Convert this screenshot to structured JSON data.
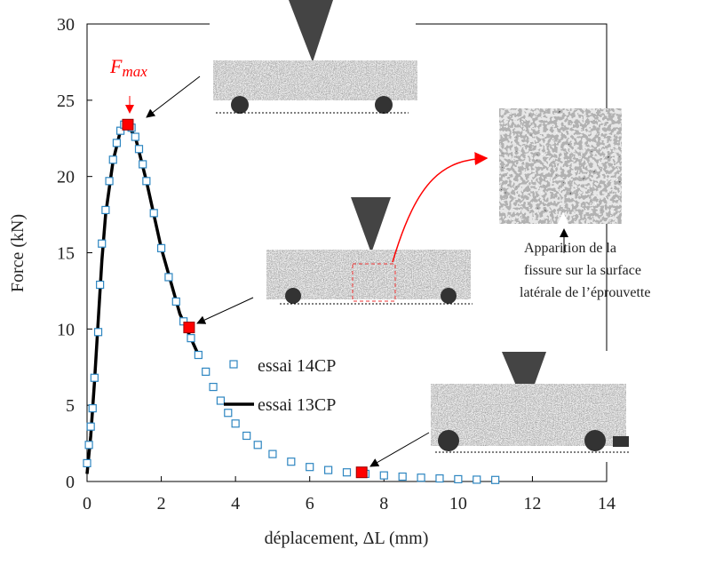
{
  "chart_data": {
    "type": "line",
    "x_label": "déplacement, ΔL (mm)",
    "y_label": "Force (kN)",
    "xlim": [
      0,
      14
    ],
    "xticks": [
      0,
      2,
      4,
      6,
      8,
      10,
      12,
      14
    ],
    "ylim": [
      0,
      30
    ],
    "yticks": [
      0,
      5,
      10,
      15,
      20,
      25,
      30
    ],
    "grid": false,
    "series": [
      {
        "name": "essai 14CP",
        "style": "markers",
        "color": "#2e86c1",
        "x": [
          0,
          0.05,
          0.1,
          0.15,
          0.2,
          0.3,
          0.35,
          0.4,
          0.5,
          0.6,
          0.7,
          0.8,
          0.9,
          1.0,
          1.1,
          1.2,
          1.3,
          1.4,
          1.5,
          1.6,
          1.8,
          2.0,
          2.2,
          2.4,
          2.6,
          2.8,
          3.0,
          3.2,
          3.4,
          3.6,
          3.8,
          4.0,
          4.3,
          4.6,
          5.0,
          5.5,
          6.0,
          6.5,
          7.0,
          7.5,
          8.0,
          8.5,
          9.0,
          9.5,
          10.0,
          10.5,
          11.0
        ],
        "values": [
          1.2,
          2.4,
          3.6,
          4.8,
          6.8,
          9.8,
          12.9,
          15.6,
          17.8,
          19.7,
          21.1,
          22.2,
          23.0,
          23.4,
          23.5,
          23.2,
          22.6,
          21.8,
          20.8,
          19.7,
          17.6,
          15.3,
          13.4,
          11.8,
          10.5,
          9.4,
          8.3,
          7.2,
          6.2,
          5.3,
          4.5,
          3.8,
          3.0,
          2.4,
          1.8,
          1.3,
          0.95,
          0.75,
          0.6,
          0.5,
          0.4,
          0.32,
          0.25,
          0.2,
          0.15,
          0.12,
          0.1
        ]
      },
      {
        "name": "essai 13CP",
        "style": "line",
        "color": "#000000",
        "x": [
          0,
          0.1,
          0.2,
          0.3,
          0.4,
          0.5,
          0.7,
          0.9,
          1.05,
          1.3,
          1.6,
          2.0,
          2.5,
          3.0
        ],
        "values": [
          0.5,
          3.0,
          6.5,
          10.5,
          14.5,
          17.5,
          21.0,
          23.0,
          23.5,
          22.6,
          19.7,
          15.3,
          11.0,
          8.3
        ]
      }
    ],
    "highlight_points": {
      "color": "#ff0000",
      "x": [
        1.1,
        2.75,
        7.4
      ],
      "values": [
        23.4,
        10.1,
        0.6
      ]
    },
    "fmax_label": {
      "base": "F",
      "sub": "max"
    },
    "crack_note": [
      "Apparition de la",
      "fissure sur la surface",
      "latérale de l’éprouvette"
    ]
  }
}
